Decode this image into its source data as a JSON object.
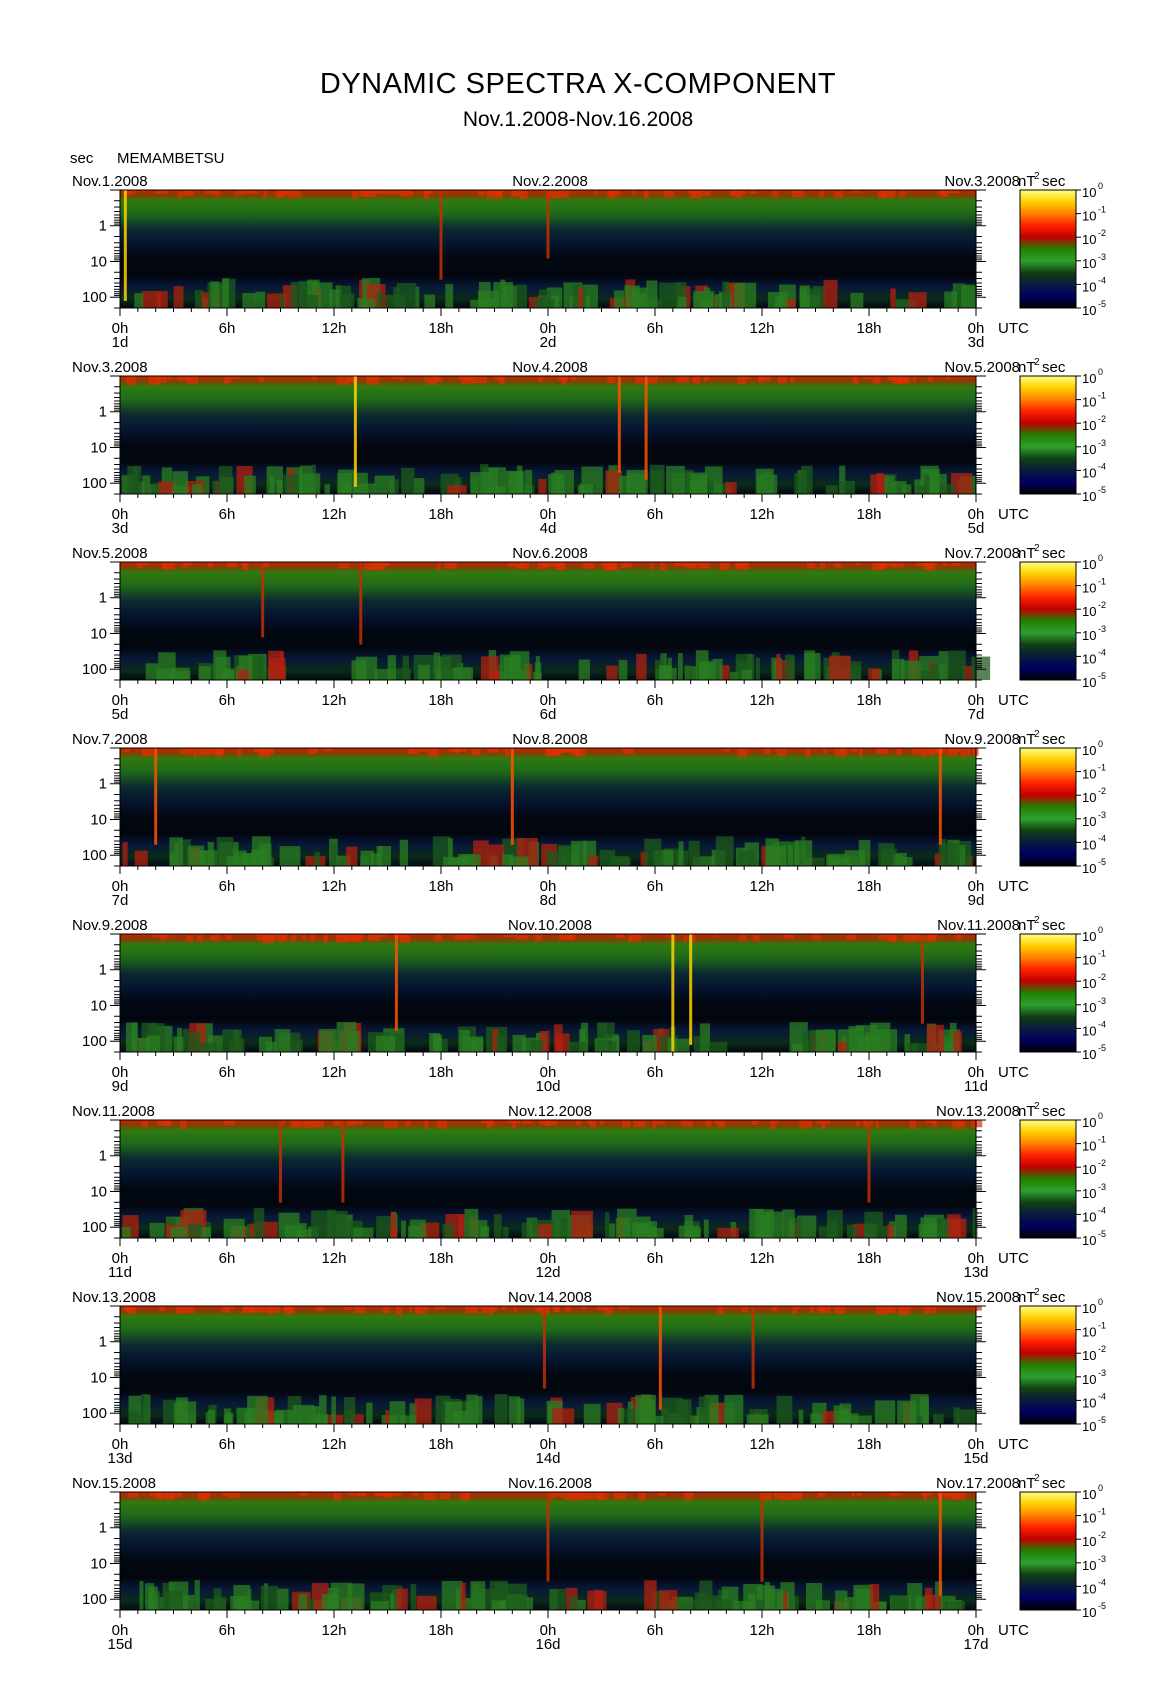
{
  "header": {
    "title": "DYNAMIC SPECTRA X-COMPONENT",
    "subtitle": "Nov.1.2008-Nov.16.2008",
    "unit_left": "sec",
    "station": "MEMAMBETSU"
  },
  "chart_data": {
    "type": "heatmap",
    "y_axis": {
      "label": "sec",
      "ticks": [
        "1",
        "10",
        "100"
      ],
      "scale": "log"
    },
    "x_axis": {
      "unit_label": "UTC",
      "tick_labels": [
        "0h",
        "6h",
        "12h",
        "18h",
        "0h",
        "6h",
        "12h",
        "18h",
        "0h"
      ]
    },
    "colorbar": {
      "unit": "nT",
      "unit_sup": "2",
      "unit_tail": "sec",
      "ticks": [
        {
          "base": "10",
          "exp": "0"
        },
        {
          "base": "10",
          "exp": "-1"
        },
        {
          "base": "10",
          "exp": "-2"
        },
        {
          "base": "10",
          "exp": "-3"
        },
        {
          "base": "10",
          "exp": "-4"
        },
        {
          "base": "10",
          "exp": "-5"
        }
      ],
      "colors": [
        "#ffff80",
        "#ffd000",
        "#ff8000",
        "#ff2000",
        "#c00000",
        "#208000",
        "#30a030",
        "#104010",
        "#0a1a40",
        "#000060",
        "#000000"
      ]
    },
    "panels": [
      {
        "dates": [
          "Nov.1.2008",
          "Nov.2.2008",
          "Nov.3.2008"
        ],
        "days": [
          "1d",
          "2d",
          "3d"
        ],
        "events": [
          {
            "t": 0.3,
            "p": 0.9
          },
          {
            "t": 18,
            "p": 0.6
          },
          {
            "t": 24,
            "p": 0.3
          }
        ]
      },
      {
        "dates": [
          "Nov.3.2008",
          "Nov.4.2008",
          "Nov.5.2008"
        ],
        "days": [
          "3d",
          "4d",
          "5d"
        ],
        "events": [
          {
            "t": 13.2,
            "p": 0.9
          },
          {
            "t": 28,
            "p": 0.7
          },
          {
            "t": 29.5,
            "p": 0.8
          }
        ]
      },
      {
        "dates": [
          "Nov.5.2008",
          "Nov.6.2008",
          "Nov.7.2008"
        ],
        "days": [
          "5d",
          "6d",
          "7d"
        ],
        "events": [
          {
            "t": 8,
            "p": 0.4
          },
          {
            "t": 13.5,
            "p": 0.5
          }
        ]
      },
      {
        "dates": [
          "Nov.7.2008",
          "Nov.8.2008",
          "Nov.9.2008"
        ],
        "days": [
          "7d",
          "8d",
          "9d"
        ],
        "events": [
          {
            "t": 2,
            "p": 0.7
          },
          {
            "t": 22,
            "p": 0.7
          },
          {
            "t": 46,
            "p": 0.7
          }
        ]
      },
      {
        "dates": [
          "Nov.9.2008",
          "Nov.10.2008",
          "Nov.11.2008"
        ],
        "days": [
          "9d",
          "10d",
          "11d"
        ],
        "events": [
          {
            "t": 15.5,
            "p": 0.7
          },
          {
            "t": 31,
            "p": 1.0
          },
          {
            "t": 32,
            "p": 0.9
          },
          {
            "t": 45,
            "p": 0.6
          }
        ]
      },
      {
        "dates": [
          "Nov.11.2008",
          "Nov.12.2008",
          "Nov.13.2008"
        ],
        "days": [
          "11d",
          "12d",
          "13d"
        ],
        "events": [
          {
            "t": 9,
            "p": 0.5
          },
          {
            "t": 12.5,
            "p": 0.5
          },
          {
            "t": 42,
            "p": 0.5
          }
        ]
      },
      {
        "dates": [
          "Nov.13.2008",
          "Nov.14.2008",
          "Nov.15.2008"
        ],
        "days": [
          "13d",
          "14d",
          "15d"
        ],
        "events": [
          {
            "t": 23.8,
            "p": 0.5
          },
          {
            "t": 30.3,
            "p": 0.8
          },
          {
            "t": 35.5,
            "p": 0.5
          }
        ]
      },
      {
        "dates": [
          "Nov.15.2008",
          "Nov.16.2008",
          "Nov.17.2008"
        ],
        "days": [
          "15d",
          "16d",
          "17d"
        ],
        "events": [
          {
            "t": 24,
            "p": 0.6
          },
          {
            "t": 36,
            "p": 0.6
          },
          {
            "t": 46,
            "p": 0.8
          }
        ]
      }
    ]
  }
}
